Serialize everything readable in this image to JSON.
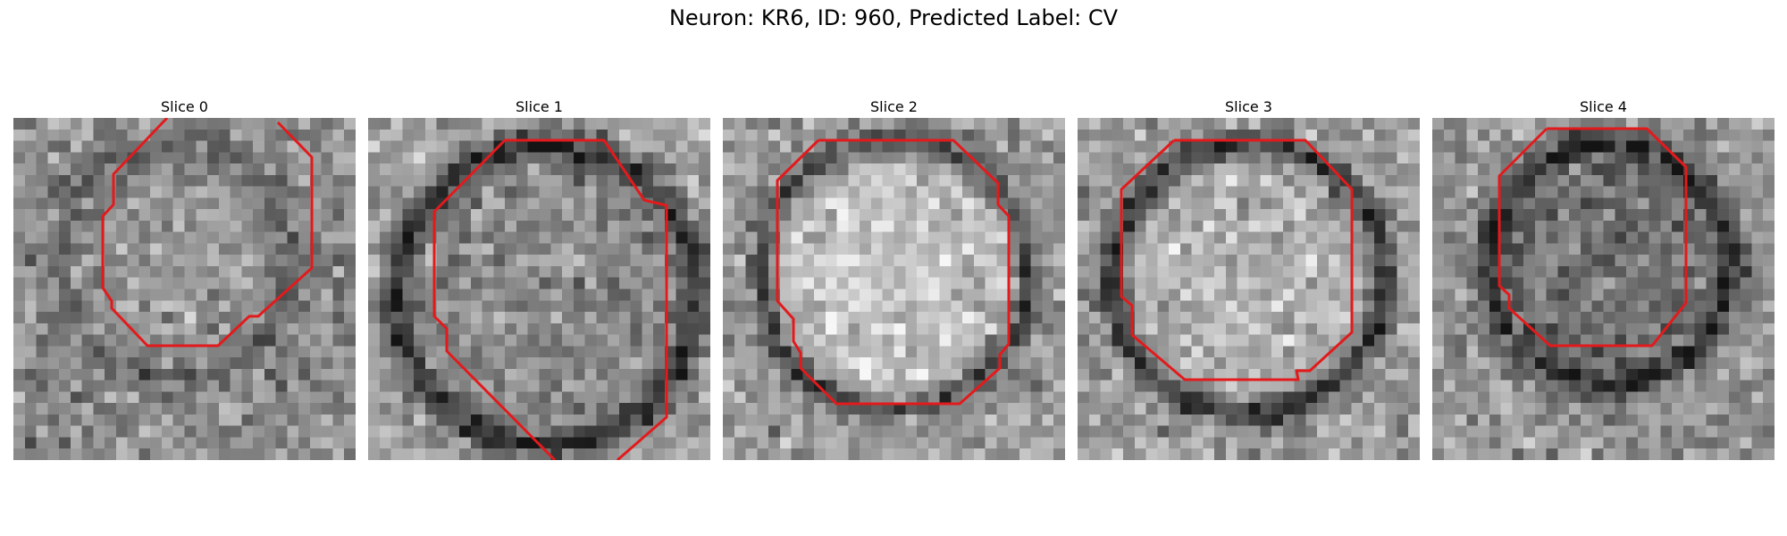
{
  "figure": {
    "title": "Neuron: KR6, ID: 960, Predicted Label: CV",
    "contour_color": "#e31a1c"
  },
  "panels": [
    {
      "title": "Slice 0"
    },
    {
      "title": "Slice 1"
    },
    {
      "title": "Slice 2"
    },
    {
      "title": "Slice 3"
    },
    {
      "title": "Slice 4"
    }
  ]
}
